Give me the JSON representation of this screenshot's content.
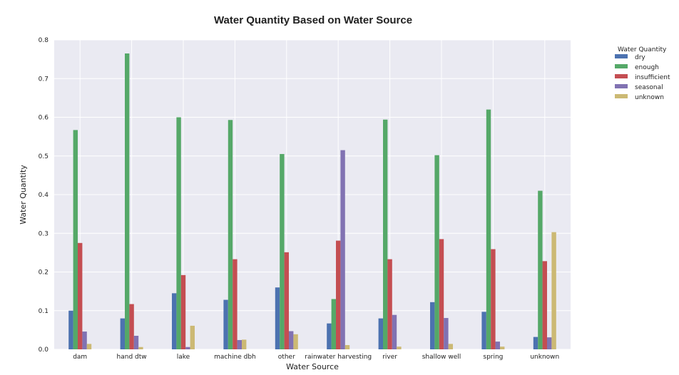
{
  "chart_data": {
    "type": "bar",
    "title": "Water Quantity Based on Water Source",
    "xlabel": "Water Source",
    "ylabel": "Water Quantity",
    "ylim": [
      0,
      0.8
    ],
    "yticks": [
      "0.0",
      "0.1",
      "0.2",
      "0.3",
      "0.4",
      "0.5",
      "0.6",
      "0.7",
      "0.8"
    ],
    "grid": true,
    "legend_title": "Water Quantity",
    "legend_position": "outside-top-right",
    "categories": [
      "dam",
      "hand dtw",
      "lake",
      "machine dbh",
      "other",
      "rainwater harvesting",
      "river",
      "shallow well",
      "spring",
      "unknown"
    ],
    "series": [
      {
        "name": "dry",
        "color": "#4c72b0",
        "values": [
          0.1,
          0.08,
          0.145,
          0.128,
          0.16,
          0.067,
          0.08,
          0.122,
          0.097,
          0.032
        ]
      },
      {
        "name": "enough",
        "color": "#55a868",
        "values": [
          0.567,
          0.765,
          0.6,
          0.593,
          0.505,
          0.13,
          0.594,
          0.502,
          0.62,
          0.41
        ]
      },
      {
        "name": "insufficient",
        "color": "#c44e52",
        "values": [
          0.275,
          0.117,
          0.192,
          0.233,
          0.251,
          0.281,
          0.233,
          0.285,
          0.259,
          0.228
        ]
      },
      {
        "name": "seasonal",
        "color": "#8172b2",
        "values": [
          0.046,
          0.035,
          0.006,
          0.024,
          0.047,
          0.515,
          0.089,
          0.081,
          0.02,
          0.031
        ]
      },
      {
        "name": "unknown",
        "color": "#ccb974",
        "values": [
          0.014,
          0.006,
          0.061,
          0.025,
          0.039,
          0.011,
          0.007,
          0.014,
          0.007,
          0.303
        ]
      }
    ]
  },
  "style": {
    "plot_background": "#eaeaf2",
    "grid_color": "#ffffff",
    "text_color": "#222222"
  }
}
